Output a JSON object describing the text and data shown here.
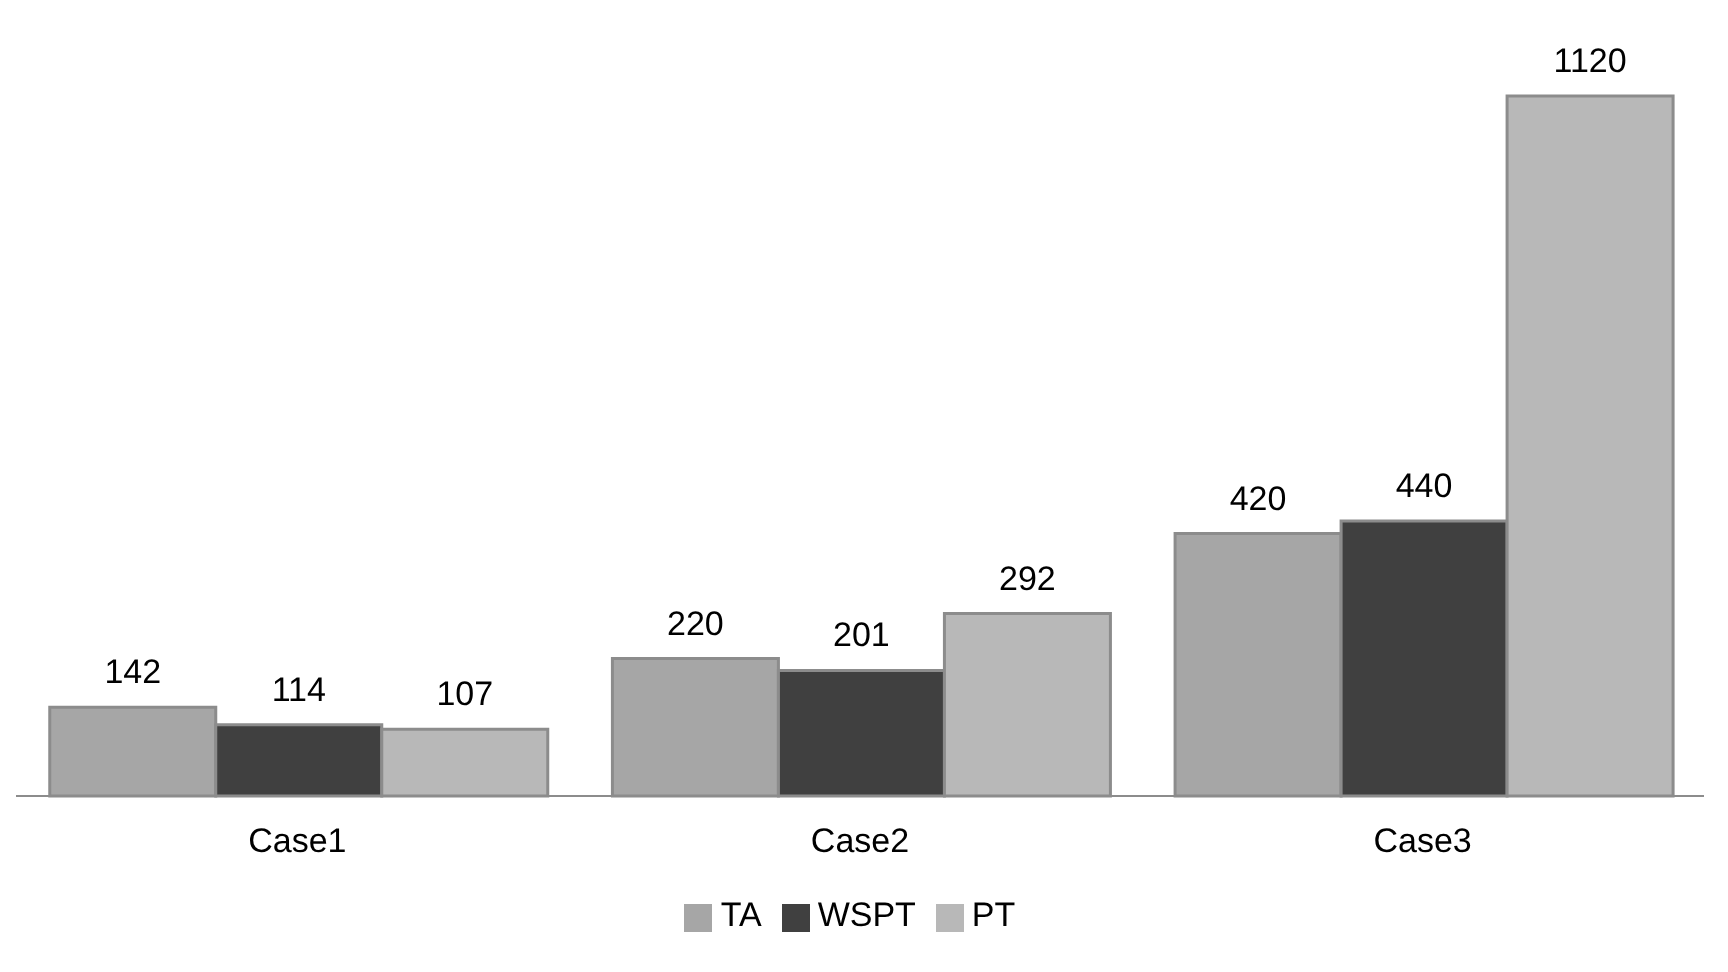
{
  "chart_data": {
    "type": "bar",
    "categories": [
      "Case1",
      "Case2",
      "Case3"
    ],
    "series": [
      {
        "name": "TA",
        "color": "#a6a6a6",
        "values": [
          142,
          220,
          420
        ]
      },
      {
        "name": "WSPT",
        "color": "#404040",
        "values": [
          114,
          201,
          440
        ]
      },
      {
        "name": "PT",
        "color": "#b8b8b8",
        "values": [
          107,
          292,
          1120
        ]
      }
    ],
    "data_labels": true,
    "legend": "bottom",
    "grid": false
  }
}
